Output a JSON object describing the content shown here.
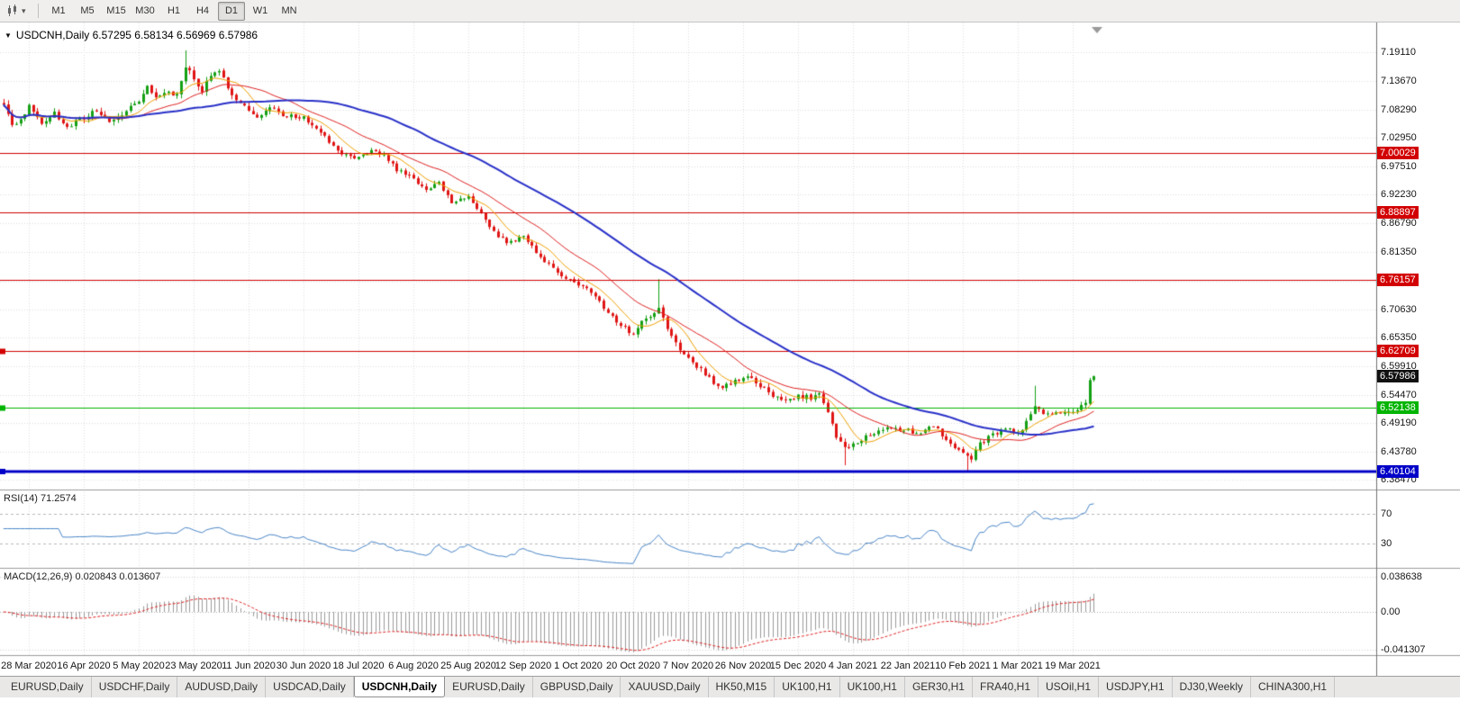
{
  "toolbar": {
    "charts_icon": "candlestick-chart-icon",
    "dropdown_icon": "chevron-down-icon",
    "timeframes": [
      "M1",
      "M5",
      "M15",
      "M30",
      "H1",
      "H4",
      "D1",
      "W1",
      "MN"
    ],
    "active_timeframe": "D1"
  },
  "chart_header": {
    "collapse_icon": "triangle-down-icon",
    "text": "USDCNH,Daily 6.57295 6.58134 6.56969 6.57986"
  },
  "indicators": {
    "rsi_title": "RSI(14) 71.2574",
    "macd_title": "MACD(12,26,9) 0.020843 0.013607"
  },
  "tabs": {
    "active_index": 4,
    "items": [
      "EURUSD,Daily",
      "USDCHF,Daily",
      "AUDUSD,Daily",
      "USDCAD,Daily",
      "USDCNH,Daily",
      "EURUSD,Daily",
      "GBPUSD,Daily",
      "XAUUSD,Daily",
      "HK50,M15",
      "UK100,H1",
      "UK100,H1",
      "GER30,H1",
      "FRA40,H1",
      "USOil,H1",
      "USDJPY,H1",
      "DJ30,Weekly",
      "CHINA300,H1"
    ],
    "note": "USDCNH,Daily is the selected tab"
  },
  "chart_data": {
    "type": "candlestick",
    "symbol": "USDCNH",
    "timeframe": "Daily",
    "bars": 259,
    "last_bar_ohlc": {
      "open": 6.57295,
      "high": 6.58134,
      "low": 6.56969,
      "close": 6.57986
    },
    "price_axis_range": [
      6.368,
      7.247
    ],
    "price_axis_ticks": [
      "7.19110",
      "7.13670",
      "7.08290",
      "7.02950",
      "6.97510",
      "6.92230",
      "6.86790",
      "6.81350",
      "6.75910",
      "6.70630",
      "6.65350",
      "6.59910",
      "6.54470",
      "6.49190",
      "6.43780",
      "6.38470"
    ],
    "current_price_label": {
      "value": 6.57986,
      "text": "6.57986",
      "bg": "#111111"
    },
    "hlines": [
      {
        "value": 7.00029,
        "label": "7.00029",
        "color": "#d20000",
        "width": 1,
        "marker": false
      },
      {
        "value": 6.88897,
        "label": "6.88897",
        "color": "#d20000",
        "width": 1,
        "marker": false
      },
      {
        "value": 6.76157,
        "label": "6.76157",
        "color": "#d20000",
        "width": 1,
        "marker": false
      },
      {
        "value": 6.62709,
        "label": "6.62709",
        "color": "#d20000",
        "width": 1,
        "marker": true
      },
      {
        "value": 6.52138,
        "label": "6.52138",
        "color": "#00b400",
        "width": 1,
        "marker": true
      },
      {
        "value": 6.40104,
        "label": "6.40104",
        "color": "#0000c8",
        "width": 3,
        "marker": true
      }
    ],
    "date_labels": [
      {
        "text": "28 Mar 2020",
        "bar": 6
      },
      {
        "text": "16 Apr 2020",
        "bar": 19
      },
      {
        "text": "5 May 2020",
        "bar": 32
      },
      {
        "text": "23 May 2020",
        "bar": 45
      },
      {
        "text": "11 Jun 2020",
        "bar": 58
      },
      {
        "text": "30 Jun 2020",
        "bar": 71
      },
      {
        "text": "18 Jul 2020",
        "bar": 84
      },
      {
        "text": "6 Aug 2020",
        "bar": 97
      },
      {
        "text": "25 Aug 2020",
        "bar": 110
      },
      {
        "text": "12 Sep 2020",
        "bar": 123
      },
      {
        "text": "1 Oct 2020",
        "bar": 136
      },
      {
        "text": "20 Oct 2020",
        "bar": 149
      },
      {
        "text": "7 Nov 2020",
        "bar": 162
      },
      {
        "text": "26 Nov 2020",
        "bar": 175
      },
      {
        "text": "15 Dec 2020",
        "bar": 188
      },
      {
        "text": "4 Jan 2021",
        "bar": 201
      },
      {
        "text": "22 Jan 2021",
        "bar": 214
      },
      {
        "text": "10 Feb 2021",
        "bar": 227
      },
      {
        "text": "1 Mar 2021",
        "bar": 240
      },
      {
        "text": "19 Mar 2021",
        "bar": 253
      }
    ],
    "moving_averages": [
      {
        "period": 8,
        "color": "#f0a000",
        "width": 1
      },
      {
        "period": 20,
        "color": "#e02020",
        "width": 1
      },
      {
        "period": 50,
        "color": "#2830c8",
        "width": 2
      }
    ],
    "style": {
      "up": "#14a014",
      "down": "#e01414",
      "grid": "#dedede",
      "bg": "#ffffff"
    },
    "anchors": [
      [
        0,
        7.095
      ],
      [
        2,
        7.05
      ],
      [
        4,
        7.062
      ],
      [
        6,
        7.088
      ],
      [
        9,
        7.058
      ],
      [
        12,
        7.076
      ],
      [
        15,
        7.048
      ],
      [
        19,
        7.068
      ],
      [
        22,
        7.082
      ],
      [
        25,
        7.06
      ],
      [
        28,
        7.072
      ],
      [
        32,
        7.098
      ],
      [
        34,
        7.128
      ],
      [
        36,
        7.105
      ],
      [
        39,
        7.118
      ],
      [
        41,
        7.108
      ],
      [
        43,
        7.162
      ],
      [
        45,
        7.142
      ],
      [
        47,
        7.12
      ],
      [
        49,
        7.15
      ],
      [
        51,
        7.16
      ],
      [
        53,
        7.125
      ],
      [
        55,
        7.098
      ],
      [
        58,
        7.082
      ],
      [
        60,
        7.068
      ],
      [
        63,
        7.088
      ],
      [
        66,
        7.072
      ],
      [
        71,
        7.068
      ],
      [
        74,
        7.048
      ],
      [
        77,
        7.022
      ],
      [
        80,
        7.002
      ],
      [
        84,
        6.992
      ],
      [
        87,
        7.004
      ],
      [
        90,
        6.996
      ],
      [
        93,
        6.97
      ],
      [
        97,
        6.95
      ],
      [
        100,
        6.93
      ],
      [
        103,
        6.944
      ],
      [
        106,
        6.91
      ],
      [
        110,
        6.916
      ],
      [
        113,
        6.885
      ],
      [
        116,
        6.85
      ],
      [
        119,
        6.832
      ],
      [
        123,
        6.842
      ],
      [
        126,
        6.815
      ],
      [
        129,
        6.79
      ],
      [
        132,
        6.772
      ],
      [
        136,
        6.75
      ],
      [
        139,
        6.74
      ],
      [
        142,
        6.71
      ],
      [
        145,
        6.68
      ],
      [
        149,
        6.66
      ],
      [
        152,
        6.692
      ],
      [
        154,
        6.7
      ],
      [
        155,
        6.71
      ],
      [
        157,
        6.668
      ],
      [
        159,
        6.64
      ],
      [
        162,
        6.618
      ],
      [
        164,
        6.6
      ],
      [
        167,
        6.575
      ],
      [
        170,
        6.56
      ],
      [
        175,
        6.58
      ],
      [
        178,
        6.568
      ],
      [
        181,
        6.55
      ],
      [
        184,
        6.532
      ],
      [
        188,
        6.542
      ],
      [
        191,
        6.54
      ],
      [
        193,
        6.545
      ],
      [
        195,
        6.51
      ],
      [
        197,
        6.462
      ],
      [
        199,
        6.445
      ],
      [
        202,
        6.452
      ],
      [
        205,
        6.472
      ],
      [
        208,
        6.48
      ],
      [
        214,
        6.478
      ],
      [
        217,
        6.47
      ],
      [
        220,
        6.488
      ],
      [
        223,
        6.458
      ],
      [
        227,
        6.432
      ],
      [
        229,
        6.425
      ],
      [
        231,
        6.452
      ],
      [
        234,
        6.47
      ],
      [
        237,
        6.482
      ],
      [
        240,
        6.472
      ],
      [
        242,
        6.492
      ],
      [
        244,
        6.525
      ],
      [
        246,
        6.505
      ],
      [
        249,
        6.512
      ],
      [
        253,
        6.515
      ],
      [
        255,
        6.522
      ],
      [
        256,
        6.528
      ],
      [
        257,
        6.572
      ],
      [
        258,
        6.57986
      ]
    ],
    "overrides": {
      "43": {
        "high": 7.1945
      },
      "155": {
        "high": 6.763
      },
      "199": {
        "low": 6.412
      },
      "228": {
        "low": 6.402
      },
      "244": {
        "high": 6.562
      },
      "257": {
        "open": 6.528
      },
      "258": {
        "open": 6.57295,
        "high": 6.58134,
        "low": 6.56969,
        "close": 6.57986
      }
    },
    "rsi": {
      "period": 14,
      "current": 71.2574,
      "color": "#4a86c8",
      "axis_range": [
        0,
        100
      ],
      "levels": [
        70,
        30
      ],
      "tick_labels": [
        "70",
        "30"
      ]
    },
    "macd": {
      "fast": 12,
      "slow": 26,
      "signal": 9,
      "current_macd": 0.020843,
      "current_signal": 0.013607,
      "hist_color": "#9a9a9a",
      "signal_color": "#e02020",
      "axis_range": [
        -0.047,
        0.046
      ],
      "ticks": [
        {
          "label": "0.038638",
          "value": 0.038638
        },
        {
          "label": "0.00",
          "value": 0.0
        },
        {
          "label": "-0.041307",
          "value": -0.041307
        }
      ]
    }
  }
}
